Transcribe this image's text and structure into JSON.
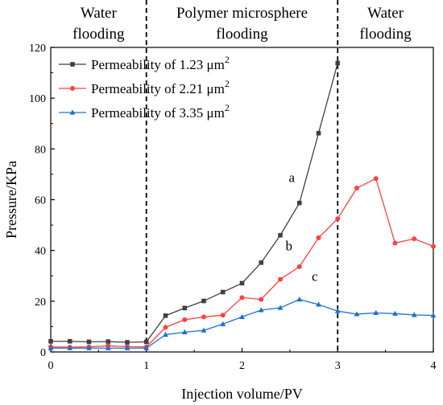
{
  "chart_data": {
    "type": "line",
    "xlabel": "Injection volume/PV",
    "ylabel": "Pressure/KPa",
    "xlim": [
      0,
      4
    ],
    "ylim": [
      0,
      120
    ],
    "xticks": [
      0,
      1,
      2,
      3,
      4
    ],
    "yticks": [
      0,
      20,
      40,
      60,
      80,
      100,
      120
    ],
    "grid": false,
    "legend_position": "top-left",
    "stages": [
      {
        "lines": [
          "Water",
          "flooding"
        ]
      },
      {
        "lines": [
          "Polymer microsphere",
          "flooding"
        ]
      },
      {
        "lines": [
          "Water",
          "flooding"
        ]
      }
    ],
    "stage_boundaries": [
      1,
      3
    ],
    "series": [
      {
        "name": "Permeability of 1.23 μm",
        "sup": "2",
        "color": "#404040",
        "marker": "square",
        "x": [
          0,
          0.2,
          0.4,
          0.6,
          0.8,
          1.0,
          1.2,
          1.4,
          1.6,
          1.8,
          2.0,
          2.2,
          2.4,
          2.6,
          2.8,
          3.0
        ],
        "y": [
          4.2,
          4.2,
          4.0,
          4.1,
          3.8,
          4.0,
          14.3,
          17.3,
          20.1,
          23.6,
          27.1,
          35.2,
          46.0,
          58.7,
          86.2,
          113.8
        ]
      },
      {
        "name": "Permeability of 2.21 μm",
        "sup": "2",
        "color": "#ff4040",
        "marker": "circle",
        "x": [
          0,
          0.2,
          0.4,
          0.6,
          0.8,
          1.0,
          1.2,
          1.4,
          1.6,
          1.8,
          2.0,
          2.2,
          2.4,
          2.6,
          2.8,
          3.0,
          3.2,
          3.4,
          3.6,
          3.8,
          4.0
        ],
        "y": [
          2.0,
          1.9,
          2.0,
          2.4,
          2.1,
          2.0,
          9.7,
          12.7,
          13.8,
          14.5,
          21.4,
          20.7,
          28.6,
          33.6,
          45.0,
          52.5,
          64.6,
          68.3,
          42.9,
          44.6,
          41.6
        ]
      },
      {
        "name": "Permeability of 3.35 μm",
        "sup": "2",
        "color": "#1f6fd0",
        "marker": "triangle",
        "x": [
          0,
          0.2,
          0.4,
          0.6,
          0.8,
          1.0,
          1.2,
          1.4,
          1.6,
          1.8,
          2.0,
          2.2,
          2.4,
          2.6,
          2.8,
          3.0,
          3.2,
          3.4,
          3.6,
          3.8,
          4.0
        ],
        "y": [
          1.5,
          1.5,
          1.5,
          1.5,
          1.5,
          1.5,
          6.8,
          7.8,
          8.5,
          11.0,
          13.8,
          16.5,
          17.4,
          20.7,
          18.7,
          16.1,
          14.9,
          15.4,
          15.1,
          14.6,
          14.4
        ]
      }
    ],
    "annotations": [
      {
        "text": "a",
        "x": 2.52,
        "y": 67
      },
      {
        "text": "b",
        "x": 2.49,
        "y": 40
      },
      {
        "text": "c",
        "x": 2.76,
        "y": 28
      }
    ]
  }
}
